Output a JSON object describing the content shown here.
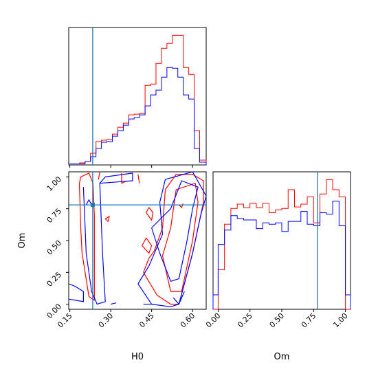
{
  "chart_data": {
    "type": "corner",
    "parameters": [
      "H0",
      "Om"
    ],
    "truths": {
      "H0": 0.234,
      "Om": 0.78
    },
    "colors": {
      "series_a": "#ff0000",
      "series_b": "#0000ff",
      "truth": "#1f77b4"
    },
    "panels": {
      "h0_hist": {
        "xlim": [
          0.146,
          0.65
        ],
        "xticks": [
          0.15,
          0.3,
          0.45,
          0.6
        ],
        "bin_edges": [
          0.146,
          0.166,
          0.186,
          0.206,
          0.226,
          0.246,
          0.266,
          0.286,
          0.306,
          0.326,
          0.346,
          0.366,
          0.386,
          0.406,
          0.426,
          0.446,
          0.466,
          0.486,
          0.506,
          0.526,
          0.546,
          0.566,
          0.586,
          0.606,
          0.626,
          0.65
        ],
        "series": [
          {
            "color": "series_a",
            "counts": [
              1.5,
              1.5,
              3.0,
              5.0,
              17.0,
              34.0,
              36.0,
              37.0,
              45.0,
              55.0,
              61.0,
              73.0,
              74.0,
              75.0,
              116.0,
              118.0,
              148.0,
              170.0,
              177.0,
              189.0,
              189.0,
              142.0,
              132.0,
              50.0,
              7.0
            ]
          },
          {
            "color": "series_b",
            "counts": [
              1.5,
              1.5,
              1.5,
              5.0,
              12.0,
              24.0,
              33.0,
              34.0,
              42.0,
              50.0,
              58.0,
              67.0,
              69.0,
              73.0,
              86.0,
              102.0,
              109.0,
              128.0,
              142.0,
              141.0,
              128.0,
              102.0,
              96.0,
              24.0,
              4.0
            ]
          }
        ]
      },
      "om_hist": {
        "xlim": [
          -0.04,
          1.04
        ],
        "xticks": [
          0.0,
          0.25,
          0.5,
          0.75,
          1.0
        ],
        "bin_edges": [
          -0.04,
          0.0,
          0.05,
          0.1,
          0.15,
          0.2,
          0.25,
          0.3,
          0.35,
          0.4,
          0.45,
          0.5,
          0.55,
          0.6,
          0.65,
          0.7,
          0.75,
          0.8,
          0.85,
          0.9,
          0.95,
          1.0,
          1.04
        ],
        "series": [
          {
            "color": "series_a",
            "counts": [
              0.0,
              55.0,
              118.0,
              140.0,
              146.0,
              141.0,
              147.0,
              141.0,
              147.0,
              134.0,
              138.0,
              140.0,
              166.0,
              142.0,
              146.0,
              156.0,
              120.0,
              160.0,
              180.0,
              166.0,
              156.0,
              0.0
            ]
          },
          {
            "color": "series_b",
            "counts": [
              20.0,
              90.0,
              110.0,
              130.0,
              126.0,
              124.0,
              124.0,
              112.0,
              120.0,
              118.0,
              120.0,
              108.0,
              122.0,
              122.0,
              136.0,
              118.0,
              116.0,
              134.0,
              132.0,
              150.0,
              116.0,
              20.0
            ]
          }
        ]
      },
      "joint": {
        "xlim": [
          0.146,
          0.65
        ],
        "ylim": [
          -0.04,
          1.04
        ],
        "xticks": [
          0.15,
          0.3,
          0.45,
          0.6
        ],
        "yticks": [
          0.0,
          0.25,
          0.5,
          0.75,
          1.0
        ],
        "contours": [
          {
            "color": "series_a",
            "points": [
              [
                0.185,
                0.95
              ],
              [
                0.19,
                0.6
              ],
              [
                0.195,
                0.4
              ],
              [
                0.22,
                0.06
              ],
              [
                0.24,
                0.03
              ],
              [
                0.24,
                0.7
              ],
              [
                0.235,
                0.95
              ],
              [
                0.22,
                1.03
              ],
              [
                0.19,
                1.0
              ],
              [
                0.185,
                0.95
              ]
            ]
          },
          {
            "color": "series_a",
            "points": [
              [
                0.255,
                0.98
              ],
              [
                0.26,
                1.04
              ]
            ]
          },
          {
            "color": "series_a",
            "points": [
              [
                0.34,
                1.03
              ],
              [
                0.34,
                0.95
              ],
              [
                0.36,
                0.97
              ]
            ]
          },
          {
            "color": "series_a",
            "points": [
              [
                0.4,
                1.02
              ],
              [
                0.405,
                0.95
              ]
            ]
          },
          {
            "color": "series_a",
            "points": [
              [
                0.28,
                0.67
              ],
              [
                0.29,
                0.65
              ],
              [
                0.295,
                0.69
              ],
              [
                0.28,
                0.67
              ]
            ]
          },
          {
            "color": "series_a",
            "points": [
              [
                0.415,
                0.46
              ],
              [
                0.44,
                0.4
              ],
              [
                0.45,
                0.46
              ],
              [
                0.43,
                0.52
              ],
              [
                0.415,
                0.46
              ]
            ]
          },
          {
            "color": "series_a",
            "points": [
              [
                0.43,
                0.72
              ],
              [
                0.45,
                0.66
              ],
              [
                0.455,
                0.72
              ],
              [
                0.44,
                0.76
              ],
              [
                0.43,
                0.72
              ]
            ]
          },
          {
            "color": "series_a",
            "points": [
              [
                0.42,
                0.25
              ],
              [
                0.47,
                0.07
              ],
              [
                0.52,
                0.0
              ],
              [
                0.55,
                0.0
              ],
              [
                0.6,
                0.4
              ],
              [
                0.64,
                0.8
              ],
              [
                0.64,
                0.97
              ],
              [
                0.6,
                1.02
              ],
              [
                0.54,
                1.02
              ],
              [
                0.5,
                0.9
              ],
              [
                0.49,
                0.6
              ],
              [
                0.46,
                0.42
              ],
              [
                0.44,
                0.36
              ],
              [
                0.42,
                0.25
              ]
            ]
          },
          {
            "color": "series_a",
            "points": [
              [
                0.49,
                0.38
              ],
              [
                0.52,
                0.1
              ],
              [
                0.56,
                0.1
              ],
              [
                0.6,
                0.5
              ],
              [
                0.62,
                0.8
              ],
              [
                0.61,
                0.95
              ],
              [
                0.54,
                0.9
              ],
              [
                0.52,
                0.6
              ],
              [
                0.49,
                0.38
              ]
            ]
          },
          {
            "color": "series_a",
            "points": [
              [
                0.55,
                0.78
              ],
              [
                0.56,
                0.76
              ],
              [
                0.565,
                0.79
              ]
            ]
          },
          {
            "color": "series_b",
            "points": [
              [
                0.146,
                0.16
              ],
              [
                0.17,
                0.14
              ],
              [
                0.2,
                0.1
              ],
              [
                0.2,
                0.02
              ],
              [
                0.146,
                0.04
              ]
            ]
          },
          {
            "color": "series_b",
            "points": [
              [
                0.2,
                0.92
              ],
              [
                0.21,
                0.4
              ],
              [
                0.23,
                0.1
              ],
              [
                0.25,
                0.0
              ],
              [
                0.28,
                0.02
              ],
              [
                0.27,
                0.4
              ],
              [
                0.26,
                0.95
              ],
              [
                0.28,
                1.0
              ],
              [
                0.38,
                1.03
              ],
              [
                0.38,
                0.97
              ],
              [
                0.26,
                0.95
              ]
            ]
          },
          {
            "color": "series_b",
            "points": [
              [
                0.21,
                0.78
              ],
              [
                0.22,
                0.82
              ],
              [
                0.23,
                0.78
              ]
            ]
          },
          {
            "color": "series_b",
            "points": [
              [
                0.3,
                0.0
              ],
              [
                0.32,
                0.01
              ]
            ]
          },
          {
            "color": "series_b",
            "points": [
              [
                0.42,
                0.0
              ],
              [
                0.45,
                0.0
              ]
            ]
          },
          {
            "color": "series_b",
            "points": [
              [
                0.4,
                0.16
              ],
              [
                0.45,
                0.0
              ],
              [
                0.52,
                -0.02
              ],
              [
                0.55,
                0.0
              ],
              [
                0.6,
                0.4
              ],
              [
                0.63,
                0.7
              ],
              [
                0.65,
                0.85
              ],
              [
                0.6,
                1.04
              ],
              [
                0.5,
                0.98
              ],
              [
                0.48,
                0.8
              ],
              [
                0.49,
                0.55
              ],
              [
                0.44,
                0.3
              ],
              [
                0.4,
                0.16
              ]
            ]
          },
          {
            "color": "series_b",
            "points": [
              [
                0.45,
                0.6
              ],
              [
                0.48,
                0.4
              ],
              [
                0.52,
                0.18
              ],
              [
                0.55,
                0.2
              ],
              [
                0.58,
                0.5
              ],
              [
                0.6,
                0.75
              ],
              [
                0.62,
                0.92
              ],
              [
                0.56,
                0.97
              ],
              [
                0.52,
                0.75
              ],
              [
                0.45,
                0.6
              ]
            ]
          },
          {
            "color": "series_b",
            "points": [
              [
                0.53,
                0.05
              ],
              [
                0.55,
                0.0
              ],
              [
                0.57,
                0.1
              ]
            ]
          }
        ]
      }
    }
  }
}
